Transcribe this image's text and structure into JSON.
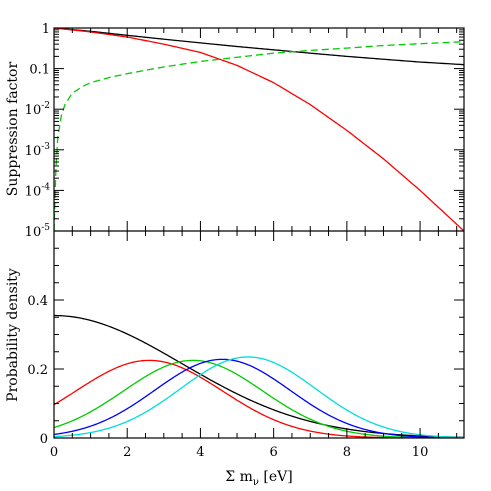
{
  "chart_data": [
    {
      "type": "line",
      "yscale": "log",
      "ylabel": "Suppression factor",
      "xlim": [
        0,
        11.2
      ],
      "ylim": [
        1e-05,
        1
      ],
      "ytick_labels": [
        {
          "base": "10",
          "exp": "-5"
        },
        {
          "base": "10",
          "exp": "-4"
        },
        {
          "base": "10",
          "exp": "-3"
        },
        {
          "base": "10",
          "exp": "-2"
        },
        {
          "base": "",
          "exp": "0.1"
        },
        {
          "base": "",
          "exp": "1"
        }
      ],
      "series": [
        {
          "color": "#000000",
          "style": "solid",
          "x": [
            0,
            1,
            2,
            3,
            4,
            5,
            6,
            7,
            8,
            9,
            10,
            11.2
          ],
          "y": [
            1,
            0.83,
            0.66,
            0.53,
            0.43,
            0.35,
            0.29,
            0.24,
            0.2,
            0.17,
            0.145,
            0.125
          ]
        },
        {
          "color": "#ff0000",
          "style": "solid",
          "x": [
            0,
            1,
            2,
            3,
            4,
            5,
            6,
            7,
            8,
            9,
            10,
            11.2
          ],
          "y": [
            1,
            0.8,
            0.6,
            0.4,
            0.25,
            0.12,
            0.045,
            0.013,
            0.003,
            0.0006,
            0.0001,
            1e-05
          ]
        },
        {
          "color": "#00cc00",
          "style": "dashed",
          "x": [
            0,
            0.05,
            0.1,
            0.2,
            0.3,
            0.5,
            0.8,
            1,
            1.5,
            2,
            3,
            4,
            5,
            6,
            7,
            8,
            9,
            10,
            11.2
          ],
          "y": [
            1e-05,
            0.0003,
            0.0019,
            0.007,
            0.013,
            0.025,
            0.037,
            0.045,
            0.06,
            0.075,
            0.11,
            0.15,
            0.19,
            0.24,
            0.28,
            0.32,
            0.37,
            0.41,
            0.46
          ]
        }
      ]
    },
    {
      "type": "line",
      "ylabel": "Probability density",
      "xlabel": {
        "prefix": "Σ m",
        "sub": "ν",
        "suffix": " [eV]"
      },
      "xlim": [
        0,
        11.2
      ],
      "ylim": [
        0,
        0.6
      ],
      "xtick_labels": [
        "0",
        "2",
        "4",
        "6",
        "8",
        "10"
      ],
      "ytick_labels": [
        "0",
        "0.2",
        "0.4"
      ],
      "series": [
        {
          "color": "#000000",
          "peak": 0.355,
          "mu": 0,
          "sigma": 3.5
        },
        {
          "color": "#ff0000",
          "peak": 0.225,
          "mu": 2.6,
          "sigma": 2.0
        },
        {
          "color": "#00cc00",
          "peak": 0.225,
          "mu": 3.8,
          "sigma": 1.9
        },
        {
          "color": "#0000ff",
          "peak": 0.228,
          "mu": 4.6,
          "sigma": 1.85
        },
        {
          "color": "#00dddd",
          "peak": 0.235,
          "mu": 5.3,
          "sigma": 1.85
        }
      ]
    }
  ]
}
